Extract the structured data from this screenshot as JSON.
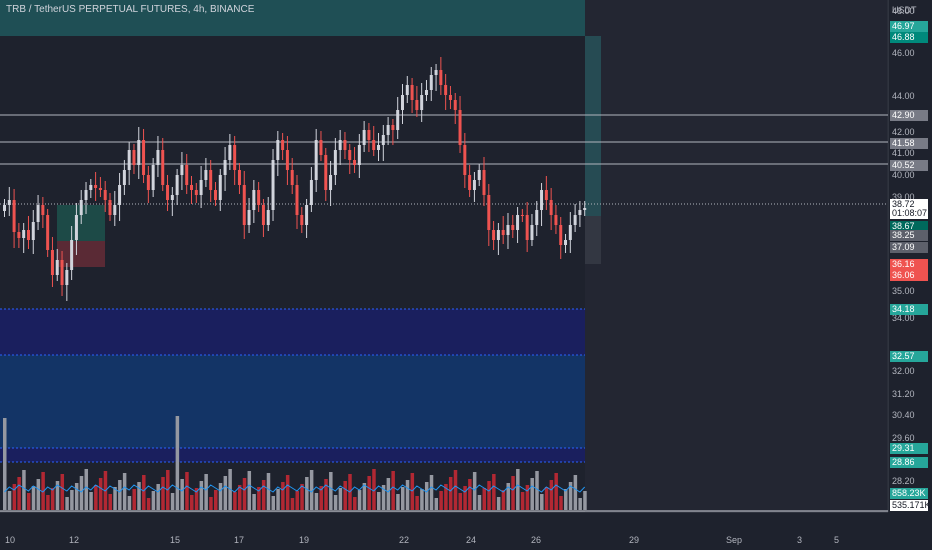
{
  "header": {
    "title": "TRB / TetherUS PERPETUAL FUTURES, 4h, BINANCE",
    "currency": "USDT"
  },
  "price_axis": {
    "ticks": [
      "48.00",
      "46.00",
      "44.00",
      "42.00",
      "41.00",
      "40.00",
      "39.00",
      "35.00",
      "34.00",
      "32.00",
      "31.20",
      "30.40",
      "29.60",
      "28.20"
    ],
    "tags": [
      {
        "text": "46.97",
        "color": "#26a69a"
      },
      {
        "text": "46.88",
        "color": "#00897b"
      },
      {
        "text": "42.90",
        "color": "#787b86"
      },
      {
        "text": "41.58",
        "color": "#787b86"
      },
      {
        "text": "40.52",
        "color": "#787b86"
      },
      {
        "text": "38.72",
        "color": "#ffffff"
      },
      {
        "text": "01:08:07",
        "color": "#ffffff"
      },
      {
        "text": "38.67",
        "color": "#00695c"
      },
      {
        "text": "38.25",
        "color": "#5d606b"
      },
      {
        "text": "37.09",
        "color": "#5d606b"
      },
      {
        "text": "36.16",
        "color": "#ef5350"
      },
      {
        "text": "36.06",
        "color": "#ef5350"
      },
      {
        "text": "34.18",
        "color": "#26a69a"
      },
      {
        "text": "32.57",
        "color": "#26a69a"
      },
      {
        "text": "29.31",
        "color": "#26a69a"
      },
      {
        "text": "28.86",
        "color": "#26a69a"
      },
      {
        "text": "858.23K",
        "color": "#26a69a"
      },
      {
        "text": "535.171K",
        "color": "#ffffff"
      }
    ]
  },
  "time_axis": {
    "labels": [
      "10",
      "12",
      "15",
      "17",
      "19",
      "22",
      "24",
      "26",
      "29",
      "Sep",
      "3",
      "5"
    ]
  },
  "colors": {
    "up": "#d1d4dc",
    "down": "#ef5350",
    "up_volume": "#9598a1",
    "down_volume": "#b22833",
    "zone_blue": "#1a237e",
    "zone_teal": "#26a69a"
  }
}
